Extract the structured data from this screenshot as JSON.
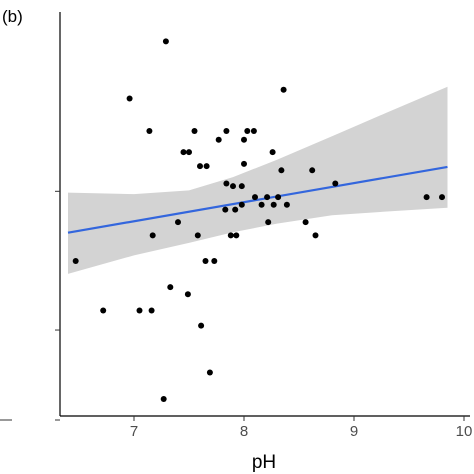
{
  "chart_data": {
    "type": "scatter",
    "panel_label": "(b)",
    "title": "",
    "xlabel": "pH",
    "ylabel": "",
    "xlim": [
      6.4,
      9.85
    ],
    "ylim": [
      0,
      1
    ],
    "x_ticks": [
      7,
      8,
      9,
      10
    ],
    "x_tick_labels": [
      "7",
      "8",
      "9",
      "10"
    ],
    "y_ticks": [
      0.0,
      0.238,
      0.605
    ],
    "grid": false,
    "legend": "none",
    "colors": {
      "points": "#000000",
      "fit_line": "#3366dd",
      "confidence_band": "#d3d3d3"
    },
    "points": {
      "x": [
        7.29,
        8.36,
        6.96,
        7.14,
        7.55,
        7.77,
        8.09,
        7.84,
        8.0,
        8.03,
        7.45,
        7.5,
        8.26,
        8.0,
        7.6,
        7.66,
        8.34,
        8.62,
        8.83,
        7.84,
        7.9,
        7.98,
        8.1,
        8.21,
        8.31,
        9.66,
        9.8,
        7.98,
        8.27,
        8.16,
        8.39,
        7.83,
        7.92,
        7.4,
        8.22,
        8.56,
        7.17,
        7.58,
        7.88,
        7.93,
        8.65,
        6.47,
        7.65,
        7.73,
        7.33,
        7.49,
        7.05,
        6.72,
        7.16,
        7.61,
        7.69,
        7.27
      ],
      "y": [
        0.946,
        0.818,
        0.795,
        0.709,
        0.709,
        0.686,
        0.709,
        0.709,
        0.686,
        0.709,
        0.653,
        0.653,
        0.653,
        0.622,
        0.616,
        0.616,
        0.605,
        0.605,
        0.57,
        0.57,
        0.563,
        0.563,
        0.534,
        0.534,
        0.534,
        0.534,
        0.534,
        0.514,
        0.514,
        0.514,
        0.514,
        0.501,
        0.501,
        0.468,
        0.468,
        0.468,
        0.433,
        0.433,
        0.433,
        0.433,
        0.433,
        0.365,
        0.365,
        0.365,
        0.296,
        0.277,
        0.234,
        0.234,
        0.234,
        0.194,
        0.07,
        0.0
      ]
    },
    "fit_line": {
      "x": [
        6.4,
        9.85
      ],
      "y": [
        0.44,
        0.614
      ]
    },
    "confidence_band": {
      "x": [
        6.4,
        7.0,
        7.5,
        7.9,
        8.3,
        8.8,
        9.3,
        9.85
      ],
      "lower": [
        0.331,
        0.38,
        0.413,
        0.441,
        0.464,
        0.486,
        0.496,
        0.506
      ],
      "upper": [
        0.546,
        0.542,
        0.552,
        0.587,
        0.633,
        0.695,
        0.758,
        0.826
      ]
    }
  }
}
